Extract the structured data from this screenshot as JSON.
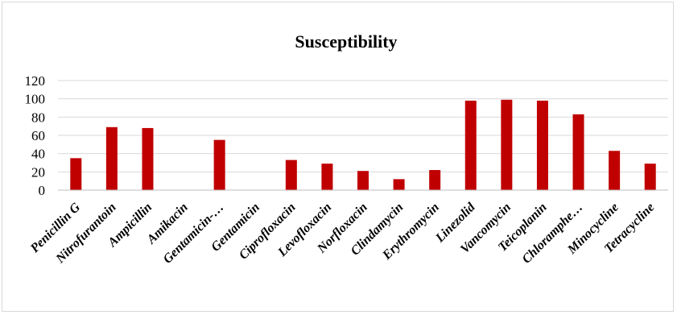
{
  "chart_data": {
    "type": "bar",
    "title": "Susceptibility",
    "xlabel": "",
    "ylabel": "",
    "ylim": [
      0,
      120
    ],
    "yticks": [
      "120",
      "100",
      "80",
      "60",
      "40",
      "20",
      "0"
    ],
    "grid": true,
    "legend": "none",
    "bar_color": "#c00000",
    "categories": [
      "Penicillin G",
      "Nitrofurantoin",
      "Ampicillin",
      "Amikacin",
      "Gentamicin-…",
      "Gentamicin",
      "Ciprofloxacin",
      "Levofloxacin",
      "Norfloxacin",
      "Clindamycin",
      "Erythromycin",
      "Linezolid",
      "Vancomycin",
      "Teicoplanin",
      "Chloramphe…",
      "Minocycline",
      "Tetracycline"
    ],
    "values": [
      35,
      69,
      68,
      0,
      55,
      0,
      33,
      29,
      21,
      12,
      22,
      98,
      99,
      98,
      83,
      43,
      29
    ]
  }
}
